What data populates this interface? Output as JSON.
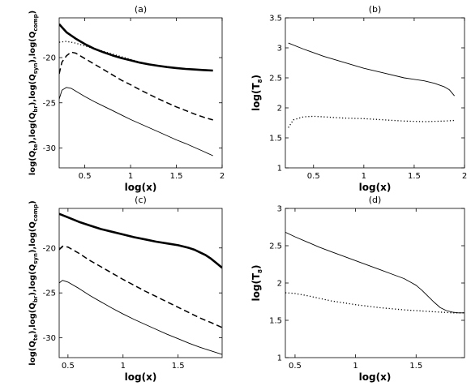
{
  "chart_data": [
    {
      "type": "line",
      "title": "(a)",
      "xlabel": "log(x)",
      "ylabel_parts": [
        "log(Q",
        "te",
        "),log(Q",
        "br",
        "),log(Q",
        "syn",
        "),log(Q",
        "comp",
        ")"
      ],
      "xlim": [
        0.22,
        2.0
      ],
      "ylim": [
        -32.2,
        -15.6
      ],
      "xticks": [
        0.5,
        1,
        1.5,
        2
      ],
      "xtick_labels": [
        "0.5",
        "1",
        "1.5",
        "2"
      ],
      "yticks": [
        -30,
        -25,
        -20
      ],
      "ytick_labels": [
        "-30",
        "-25",
        "-20"
      ],
      "series": [
        {
          "style": "thick",
          "x": [
            0.22,
            0.3,
            0.4,
            0.5,
            0.6,
            0.7,
            0.8,
            0.9,
            1.0,
            1.1,
            1.2,
            1.3,
            1.4,
            1.5,
            1.6,
            1.7,
            1.8,
            1.9
          ],
          "y": [
            -16.3,
            -17.2,
            -17.9,
            -18.5,
            -19.0,
            -19.4,
            -19.75,
            -20.05,
            -20.3,
            -20.55,
            -20.75,
            -20.9,
            -21.05,
            -21.15,
            -21.25,
            -21.32,
            -21.38,
            -21.43
          ]
        },
        {
          "style": "dotted",
          "x": [
            0.22,
            0.3,
            0.4,
            0.5,
            0.6,
            0.7,
            0.8,
            0.9,
            1.0,
            1.1,
            1.2
          ],
          "y": [
            -18.3,
            -18.2,
            -18.4,
            -18.7,
            -19.0,
            -19.3,
            -19.6,
            -19.9,
            -20.2,
            -20.5,
            -20.8
          ]
        },
        {
          "style": "dashed",
          "x": [
            0.22,
            0.25,
            0.3,
            0.35,
            0.4,
            0.5,
            0.6,
            0.7,
            0.8,
            0.9,
            1.0,
            1.1,
            1.2,
            1.3,
            1.4,
            1.5,
            1.6,
            1.7,
            1.8,
            1.9
          ],
          "y": [
            -21.8,
            -20.5,
            -19.8,
            -19.4,
            -19.5,
            -20.1,
            -20.7,
            -21.3,
            -21.9,
            -22.5,
            -23.0,
            -23.55,
            -24.05,
            -24.55,
            -25.0,
            -25.45,
            -25.85,
            -26.25,
            -26.6,
            -26.9
          ]
        },
        {
          "style": "thin",
          "x": [
            0.22,
            0.25,
            0.3,
            0.35,
            0.4,
            0.5,
            0.6,
            0.7,
            0.8,
            0.9,
            1.0,
            1.1,
            1.2,
            1.3,
            1.4,
            1.5,
            1.6,
            1.7,
            1.8,
            1.9
          ],
          "y": [
            -24.6,
            -23.6,
            -23.3,
            -23.4,
            -23.7,
            -24.3,
            -24.85,
            -25.35,
            -25.85,
            -26.35,
            -26.85,
            -27.3,
            -27.75,
            -28.2,
            -28.65,
            -29.1,
            -29.5,
            -29.95,
            -30.4,
            -30.85
          ]
        }
      ]
    },
    {
      "type": "line",
      "title": "(b)",
      "xlabel": "log(x)",
      "ylabel_parts": [
        "log(T",
        "8",
        ")"
      ],
      "xlim": [
        0.22,
        2.0
      ],
      "ylim": [
        1.0,
        3.5
      ],
      "xticks": [
        0.5,
        1,
        1.5,
        2
      ],
      "xtick_labels": [
        "0.5",
        "1",
        "1.5",
        "2"
      ],
      "yticks": [
        1,
        1.5,
        2,
        2.5,
        3,
        3.5
      ],
      "ytick_labels": [
        "1",
        "1.5",
        "2",
        "2.5",
        "3",
        "3.5"
      ],
      "series": [
        {
          "style": "thin",
          "x": [
            0.25,
            0.4,
            0.6,
            0.8,
            1.0,
            1.2,
            1.4,
            1.6,
            1.7,
            1.8,
            1.85,
            1.9
          ],
          "y": [
            3.08,
            2.98,
            2.86,
            2.76,
            2.66,
            2.58,
            2.5,
            2.45,
            2.41,
            2.35,
            2.3,
            2.2
          ]
        },
        {
          "style": "dotted",
          "x": [
            0.25,
            0.3,
            0.4,
            0.5,
            0.6,
            0.8,
            1.0,
            1.2,
            1.4,
            1.6,
            1.8,
            1.9
          ],
          "y": [
            1.67,
            1.8,
            1.85,
            1.86,
            1.85,
            1.83,
            1.82,
            1.8,
            1.78,
            1.77,
            1.78,
            1.79
          ]
        }
      ]
    },
    {
      "type": "line",
      "title": "(c)",
      "xlabel": "log(x)",
      "ylabel_parts": [
        "log(Q",
        "te",
        "),log(Q",
        "br",
        "),log(Q",
        "syn",
        "),log(Q",
        "comp",
        ")"
      ],
      "xlim": [
        0.42,
        1.9
      ],
      "ylim": [
        -32.2,
        -15.6
      ],
      "xticks": [
        0.5,
        1,
        1.5
      ],
      "xtick_labels": [
        "0.5",
        "1",
        "1.5"
      ],
      "yticks": [
        -30,
        -25,
        -20
      ],
      "ytick_labels": [
        "-30",
        "-25",
        "-20"
      ],
      "series": [
        {
          "style": "thick",
          "x": [
            0.42,
            0.5,
            0.6,
            0.7,
            0.8,
            0.9,
            1.0,
            1.1,
            1.2,
            1.3,
            1.4,
            1.5,
            1.6,
            1.65,
            1.7,
            1.75,
            1.8,
            1.85,
            1.9
          ],
          "y": [
            -16.2,
            -16.6,
            -17.1,
            -17.5,
            -17.9,
            -18.2,
            -18.5,
            -18.8,
            -19.05,
            -19.3,
            -19.5,
            -19.7,
            -20.0,
            -20.2,
            -20.5,
            -20.8,
            -21.2,
            -21.7,
            -22.2
          ]
        },
        {
          "style": "dashed",
          "x": [
            0.42,
            0.45,
            0.5,
            0.6,
            0.7,
            0.8,
            0.9,
            1.0,
            1.1,
            1.2,
            1.3,
            1.4,
            1.5,
            1.6,
            1.7,
            1.8,
            1.9
          ],
          "y": [
            -20.2,
            -19.8,
            -19.9,
            -20.6,
            -21.4,
            -22.1,
            -22.8,
            -23.5,
            -24.15,
            -24.8,
            -25.4,
            -26.0,
            -26.6,
            -27.2,
            -27.8,
            -28.3,
            -28.85
          ]
        },
        {
          "style": "thin",
          "x": [
            0.42,
            0.45,
            0.5,
            0.6,
            0.7,
            0.8,
            0.9,
            1.0,
            1.1,
            1.2,
            1.3,
            1.4,
            1.5,
            1.6,
            1.7,
            1.8,
            1.9
          ],
          "y": [
            -23.9,
            -23.6,
            -23.8,
            -24.5,
            -25.3,
            -26.0,
            -26.7,
            -27.35,
            -27.95,
            -28.5,
            -29.05,
            -29.6,
            -30.1,
            -30.6,
            -31.05,
            -31.45,
            -31.85
          ]
        }
      ]
    },
    {
      "type": "line",
      "title": "(d)",
      "xlabel": "log(x)",
      "ylabel_parts": [
        "log(T",
        "8",
        ")"
      ],
      "xlim": [
        0.42,
        1.9
      ],
      "ylim": [
        1.0,
        3.0
      ],
      "xticks": [
        0.5,
        1,
        1.5
      ],
      "xtick_labels": [
        "0.5",
        "1",
        "1.5"
      ],
      "yticks": [
        1,
        1.5,
        2,
        2.5,
        3
      ],
      "ytick_labels": [
        "1",
        "1.5",
        "2",
        "2.5",
        "3"
      ],
      "series": [
        {
          "style": "thin",
          "x": [
            0.42,
            0.5,
            0.6,
            0.7,
            0.8,
            0.9,
            1.0,
            1.1,
            1.2,
            1.3,
            1.4,
            1.5,
            1.55,
            1.6,
            1.65,
            1.7,
            1.75,
            1.8,
            1.85,
            1.9
          ],
          "y": [
            2.68,
            2.62,
            2.55,
            2.48,
            2.42,
            2.36,
            2.3,
            2.24,
            2.18,
            2.12,
            2.06,
            1.97,
            1.9,
            1.82,
            1.74,
            1.67,
            1.63,
            1.61,
            1.6,
            1.6
          ]
        },
        {
          "style": "dotted",
          "x": [
            0.42,
            0.5,
            0.6,
            0.8,
            1.0,
            1.2,
            1.4,
            1.6,
            1.7,
            1.8,
            1.9
          ],
          "y": [
            1.87,
            1.86,
            1.83,
            1.76,
            1.71,
            1.67,
            1.64,
            1.62,
            1.61,
            1.6,
            1.6
          ]
        }
      ]
    }
  ]
}
